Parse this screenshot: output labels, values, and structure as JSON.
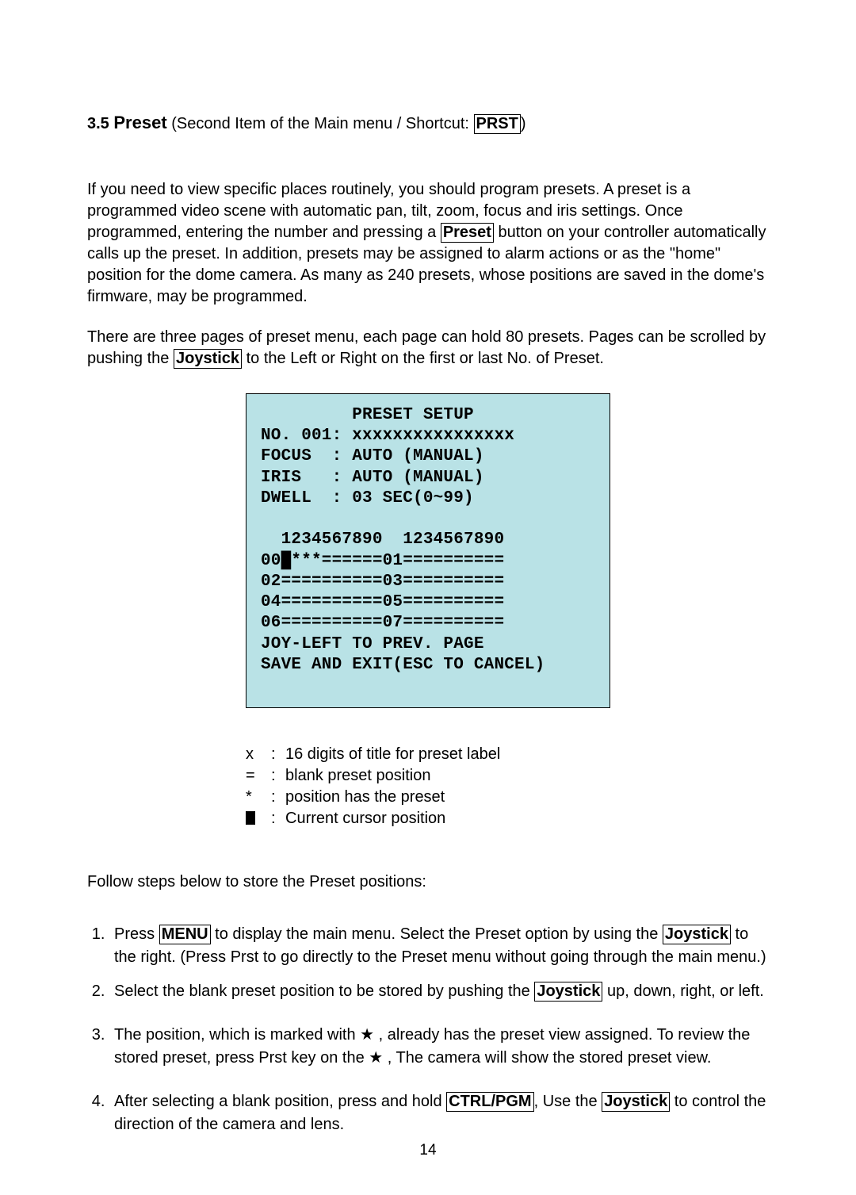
{
  "heading": {
    "number": "3.5",
    "title": "Preset",
    "subtitle_prefix": "  (Second Item of the Main menu / Shortcut: ",
    "shortcut_box": "PRST",
    "subtitle_suffix": ")"
  },
  "intro": {
    "p1a": "If you need to view specific places routinely, you should program presets. A preset is a programmed video scene with automatic pan, tilt, zoom, focus and iris settings. Once programmed, entering the number and pressing a ",
    "preset_box": "Preset",
    "p1b": " button on your controller automatically calls up the preset. In addition, presets may be assigned to alarm actions or as the \"home\" position for the dome camera. As many as 240 presets, whose positions are saved in the dome's firmware, may be programmed.",
    "p2a": "There are three pages of preset menu, each page can hold 80 presets. Pages can be scrolled by pushing the ",
    "joystick_box": "Joystick",
    "p2b": " to the Left or Right on the first or last No. of Preset."
  },
  "osd": {
    "background_color": "#b9e2e6",
    "border_color": "#000000",
    "font_family": "Courier New",
    "lines": "         PRESET SETUP\nNO. 001: xxxxxxxxxxxxxxxx\nFOCUS  : AUTO (MANUAL)\nIRIS   : AUTO (MANUAL)\nDWELL  : 03 SEC(0~99)\n\n  1234567890  1234567890\n00█***======01==========\n02==========03==========\n04==========05==========\n06==========07==========\nJOY-LEFT TO PREV. PAGE\nSAVE AND EXIT(ESC TO CANCEL)"
  },
  "legend": {
    "items": [
      {
        "sym": "x",
        "text": "16 digits of title for preset label"
      },
      {
        "sym": "=",
        "text": "blank preset position"
      },
      {
        "sym": "*",
        "text": "position has the preset"
      },
      {
        "sym": "█",
        "text": "Current cursor position",
        "solid": true
      }
    ]
  },
  "follow_text": "Follow steps below to store the Preset positions:",
  "steps": {
    "s1a": "Press ",
    "menu_box": "MENU",
    "s1b": " to display the main menu. Select the Preset option by using the ",
    "joystick_box1": "Joystick",
    "s1c": " to the right. (Press Prst to go directly to the Preset menu without going through the main menu.)",
    "s2a": "Select the blank preset position to be stored by pushing the ",
    "joystick_box2": "Joystick",
    "s2b": " up, down, right, or left.",
    "s3a": "The position, which is marked with ",
    "star": "★",
    "s3b": " , already has the preset view assigned. To review the stored preset, press Prst key on the  ",
    "s3c": "  ,  The camera will show the stored preset view.",
    "s4a": "After selecting a blank position, press and hold ",
    "ctrl_box": "CTRL/PGM",
    "s4b": ", Use the ",
    "joystick_box3": "Joystick",
    "s4c": " to control the direction of the camera and lens."
  },
  "page_number": "14"
}
